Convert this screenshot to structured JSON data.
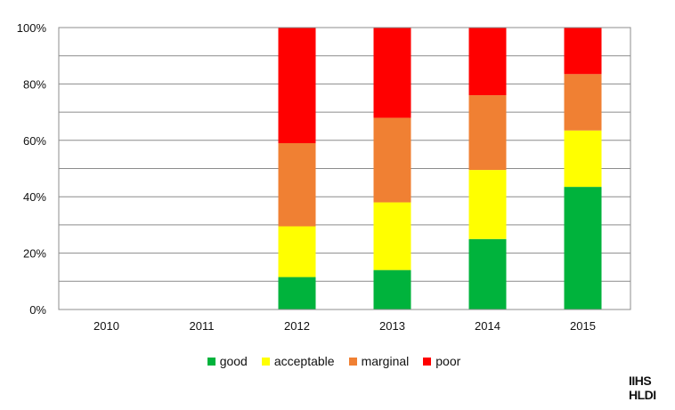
{
  "chart_data": {
    "type": "bar",
    "stacked": true,
    "categories": [
      "2010",
      "2011",
      "2012",
      "2013",
      "2014",
      "2015"
    ],
    "series": [
      {
        "name": "good",
        "color": "#00b33c",
        "values": [
          0,
          0,
          11.5,
          14,
          25,
          43.5
        ]
      },
      {
        "name": "acceptable",
        "color": "#ffff00",
        "values": [
          0,
          0,
          18,
          24,
          24.5,
          20
        ]
      },
      {
        "name": "marginal",
        "color": "#f08033",
        "values": [
          0,
          0,
          29.5,
          30,
          26.5,
          20
        ]
      },
      {
        "name": "poor",
        "color": "#ff0000",
        "values": [
          0,
          0,
          41,
          32,
          24,
          16.5
        ]
      }
    ],
    "yticks": [
      "0%",
      "20%",
      "40%",
      "60%",
      "80%",
      "100%"
    ],
    "ylim": [
      0,
      100
    ],
    "grid": true,
    "legend_position": "bottom"
  },
  "logo": {
    "line1": "IIHS",
    "line2": "HLDI"
  }
}
